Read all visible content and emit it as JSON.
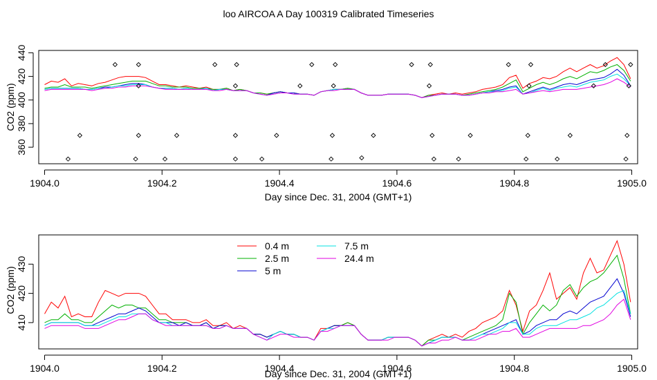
{
  "title": "loo AIRCOA A  Day 100319  Calibrated Timeseries",
  "colors": {
    "0.4 m": "#ff0000",
    "2.5 m": "#00b000",
    "5 m": "#0000d0",
    "7.5 m": "#00e0e0",
    "24.4 m": "#e000e0"
  },
  "chart_data": [
    {
      "type": "scatter",
      "title": "loo AIRCOA A  Day 100319  Calibrated Timeseries",
      "xlabel": "Day since Dec. 31, 2004 (GMT+1)",
      "ylabel": "CO2 (ppm)",
      "xlim": [
        1903.99,
        1905.01
      ],
      "ylim": [
        346,
        442
      ],
      "xticks": [
        "1904.0",
        "1904.2",
        "1904.4",
        "1904.6",
        "1904.8",
        "1905.0"
      ],
      "yticks": [
        "360",
        "380",
        "400",
        "420",
        "440"
      ],
      "grid": false,
      "series": [
        {
          "name": "0.4 m",
          "values": [
            413,
            416,
            415,
            418,
            412,
            414,
            413,
            412,
            414,
            415,
            417,
            419,
            420,
            420,
            420,
            419,
            416,
            413,
            413,
            412,
            411,
            412,
            411,
            410,
            411,
            409,
            409,
            410,
            408,
            409,
            408,
            406,
            406,
            405,
            406,
            407,
            406,
            406,
            405,
            405,
            404,
            407,
            408,
            409,
            409,
            410,
            409,
            406,
            404,
            404,
            404,
            405,
            405,
            405,
            405,
            404,
            402,
            404,
            405,
            406,
            405,
            406,
            405,
            406,
            407,
            409,
            410,
            411,
            413,
            419,
            421,
            410,
            414,
            416,
            419,
            418,
            420,
            424,
            427,
            424,
            427,
            430,
            427,
            429,
            433,
            436,
            430,
            418
          ]
        },
        {
          "name": "2.5 m",
          "values": [
            410,
            411,
            411,
            413,
            411,
            411,
            411,
            410,
            411,
            412,
            413,
            414,
            415,
            416,
            416,
            416,
            414,
            412,
            412,
            411,
            411,
            411,
            410,
            410,
            410,
            409,
            409,
            410,
            408,
            409,
            408,
            406,
            406,
            405,
            406,
            407,
            406,
            406,
            405,
            405,
            404,
            407,
            408,
            409,
            409,
            410,
            409,
            406,
            404,
            404,
            404,
            405,
            405,
            405,
            405,
            404,
            402,
            404,
            404,
            405,
            405,
            405,
            404,
            405,
            406,
            407,
            408,
            409,
            411,
            414,
            417,
            407,
            410,
            413,
            415,
            413,
            415,
            418,
            420,
            418,
            421,
            424,
            423,
            425,
            428,
            430,
            425,
            416
          ]
        },
        {
          "name": "5 m",
          "values": [
            409,
            410,
            410,
            410,
            410,
            410,
            409,
            409,
            410,
            411,
            411,
            412,
            413,
            414,
            414,
            413,
            411,
            410,
            410,
            410,
            409,
            410,
            409,
            409,
            410,
            408,
            409,
            409,
            408,
            408,
            408,
            406,
            405,
            404,
            406,
            407,
            406,
            406,
            405,
            405,
            404,
            407,
            408,
            409,
            409,
            409,
            409,
            406,
            404,
            404,
            404,
            405,
            405,
            405,
            405,
            404,
            402,
            403,
            404,
            405,
            405,
            405,
            404,
            404,
            405,
            406,
            407,
            408,
            409,
            411,
            412,
            405,
            407,
            409,
            411,
            409,
            411,
            413,
            414,
            413,
            415,
            417,
            418,
            419,
            422,
            426,
            421,
            412
          ]
        },
        {
          "name": "7.5 m",
          "values": [
            409,
            410,
            410,
            410,
            410,
            410,
            409,
            409,
            410,
            410,
            411,
            412,
            412,
            413,
            413,
            413,
            411,
            410,
            410,
            410,
            409,
            410,
            409,
            409,
            410,
            408,
            409,
            409,
            408,
            408,
            408,
            406,
            405,
            404,
            405,
            406,
            406,
            405,
            405,
            405,
            404,
            407,
            408,
            409,
            409,
            409,
            409,
            406,
            404,
            404,
            404,
            405,
            405,
            405,
            405,
            404,
            402,
            403,
            404,
            405,
            405,
            405,
            404,
            404,
            405,
            406,
            407,
            407,
            408,
            410,
            411,
            405,
            406,
            408,
            410,
            408,
            410,
            411,
            412,
            411,
            413,
            415,
            416,
            417,
            420,
            422,
            418,
            412
          ]
        },
        {
          "name": "24.4 m",
          "values": [
            408,
            409,
            409,
            409,
            409,
            409,
            409,
            408,
            409,
            410,
            410,
            411,
            411,
            412,
            412,
            412,
            411,
            410,
            409,
            409,
            409,
            409,
            409,
            409,
            409,
            408,
            408,
            409,
            408,
            408,
            408,
            406,
            405,
            404,
            405,
            406,
            406,
            405,
            405,
            405,
            404,
            407,
            408,
            408,
            409,
            409,
            409,
            406,
            404,
            404,
            404,
            405,
            405,
            405,
            405,
            404,
            402,
            403,
            404,
            405,
            405,
            405,
            404,
            404,
            405,
            406,
            406,
            407,
            407,
            408,
            409,
            405,
            406,
            407,
            408,
            407,
            408,
            409,
            409,
            409,
            410,
            411,
            412,
            413,
            415,
            418,
            415,
            411
          ]
        },
        {
          "name": "flags",
          "x": [
            1904.04,
            1904.06,
            1904.12,
            1904.155,
            1904.16,
            1904.16,
            1904.16,
            1904.205,
            1904.225,
            1904.29,
            1904.325,
            1904.325,
            1904.325,
            1904.327,
            1904.37,
            1904.395,
            1904.435,
            1904.455,
            1904.488,
            1904.49,
            1904.492,
            1904.495,
            1904.54,
            1904.56,
            1904.625,
            1904.655,
            1904.657,
            1904.66,
            1904.663,
            1904.705,
            1904.725,
            1904.79,
            1904.82,
            1904.823,
            1904.825,
            1904.828,
            1904.873,
            1904.895,
            1904.935,
            1904.955,
            1904.99,
            1904.992,
            1904.995,
            1904.998
          ],
          "y": [
            350,
            370,
            430,
            350,
            370,
            412,
            430,
            350,
            370,
            430,
            350,
            370,
            412,
            430,
            350,
            370,
            412,
            430,
            350,
            370,
            412,
            430,
            351,
            370,
            430,
            412,
            430,
            370,
            350,
            350,
            370,
            430,
            350,
            370,
            412,
            430,
            350,
            370,
            412,
            430,
            350,
            370,
            412,
            430
          ]
        }
      ]
    },
    {
      "type": "line",
      "xlabel": "Day since Dec. 31, 2004 (GMT+1)",
      "ylabel": "CO2 (ppm)",
      "xlim": [
        1903.99,
        1905.01
      ],
      "ylim": [
        401,
        440
      ],
      "xticks": [
        "1904.0",
        "1904.2",
        "1904.4",
        "1904.6",
        "1904.8",
        "1905.0"
      ],
      "yticks": [
        "410",
        "420",
        "430"
      ],
      "grid": false,
      "legend": "top-center",
      "legend_entries": [
        "0.4 m",
        "2.5 m",
        "5 m",
        "7.5 m",
        "24.4 m"
      ],
      "series": [
        {
          "name": "0.4 m",
          "values": [
            413,
            417,
            415,
            419,
            412,
            413,
            412,
            412,
            417,
            421,
            420,
            419,
            420,
            420,
            420,
            419,
            416,
            413,
            413,
            411,
            411,
            411,
            410,
            410,
            411,
            409,
            409,
            410,
            408,
            409,
            408,
            406,
            406,
            405,
            406,
            407,
            406,
            406,
            405,
            405,
            404,
            408,
            408,
            409,
            409,
            410,
            409,
            406,
            404,
            404,
            404,
            405,
            405,
            405,
            405,
            404,
            402,
            404,
            405,
            406,
            405,
            406,
            405,
            407,
            408,
            410,
            411,
            412,
            414,
            421,
            416,
            407,
            414,
            416,
            421,
            427,
            418,
            420,
            422,
            418,
            427,
            432,
            427,
            428,
            433,
            438,
            430,
            417
          ]
        },
        {
          "name": "2.5 m",
          "values": [
            410,
            411,
            411,
            413,
            411,
            411,
            410,
            410,
            412,
            414,
            416,
            415,
            416,
            416,
            415,
            415,
            413,
            411,
            411,
            410,
            410,
            410,
            409,
            409,
            410,
            408,
            409,
            409,
            408,
            408,
            408,
            406,
            406,
            405,
            406,
            407,
            406,
            406,
            405,
            405,
            404,
            407,
            408,
            409,
            409,
            410,
            409,
            406,
            404,
            404,
            404,
            405,
            405,
            405,
            405,
            404,
            402,
            404,
            404,
            405,
            405,
            405,
            404,
            405,
            406,
            407,
            408,
            409,
            411,
            420,
            417,
            406,
            410,
            413,
            416,
            414,
            416,
            421,
            423,
            419,
            422,
            424,
            425,
            427,
            430,
            433,
            425,
            413
          ]
        },
        {
          "name": "5 m",
          "values": [
            409,
            410,
            410,
            410,
            410,
            410,
            409,
            409,
            410,
            411,
            412,
            413,
            413,
            414,
            415,
            414,
            412,
            410,
            410,
            410,
            409,
            410,
            409,
            409,
            410,
            408,
            409,
            409,
            408,
            408,
            408,
            406,
            406,
            405,
            406,
            407,
            406,
            406,
            405,
            405,
            404,
            407,
            408,
            409,
            409,
            409,
            409,
            406,
            404,
            404,
            404,
            405,
            405,
            405,
            405,
            404,
            402,
            403,
            404,
            405,
            405,
            405,
            404,
            404,
            405,
            406,
            407,
            408,
            409,
            410,
            411,
            406,
            407,
            409,
            410,
            411,
            411,
            413,
            414,
            413,
            415,
            417,
            418,
            419,
            422,
            425,
            420,
            412
          ]
        },
        {
          "name": "7.5 m",
          "values": [
            409,
            410,
            410,
            410,
            410,
            410,
            409,
            409,
            409,
            410,
            411,
            412,
            412,
            413,
            413,
            413,
            411,
            410,
            410,
            409,
            409,
            409,
            409,
            409,
            409,
            408,
            408,
            409,
            408,
            408,
            408,
            406,
            405,
            404,
            406,
            407,
            406,
            406,
            405,
            405,
            404,
            407,
            408,
            408,
            409,
            409,
            409,
            406,
            404,
            404,
            404,
            405,
            405,
            405,
            405,
            404,
            402,
            403,
            404,
            405,
            405,
            405,
            404,
            404,
            405,
            406,
            406,
            407,
            408,
            410,
            410,
            406,
            406,
            408,
            409,
            409,
            409,
            410,
            411,
            411,
            412,
            413,
            415,
            416,
            418,
            420,
            421,
            413
          ]
        },
        {
          "name": "24.4 m",
          "values": [
            408,
            409,
            409,
            409,
            409,
            409,
            408,
            408,
            408,
            409,
            410,
            411,
            411,
            412,
            413,
            413,
            411,
            410,
            409,
            409,
            409,
            409,
            409,
            409,
            409,
            408,
            408,
            409,
            408,
            408,
            408,
            406,
            405,
            404,
            405,
            406,
            406,
            405,
            405,
            405,
            404,
            407,
            407,
            408,
            409,
            409,
            409,
            406,
            404,
            404,
            404,
            404,
            405,
            405,
            405,
            404,
            402,
            403,
            403,
            404,
            404,
            405,
            404,
            404,
            404,
            405,
            406,
            406,
            407,
            407,
            408,
            405,
            405,
            406,
            407,
            408,
            408,
            408,
            408,
            408,
            409,
            409,
            410,
            411,
            413,
            416,
            418,
            411
          ]
        }
      ]
    }
  ]
}
